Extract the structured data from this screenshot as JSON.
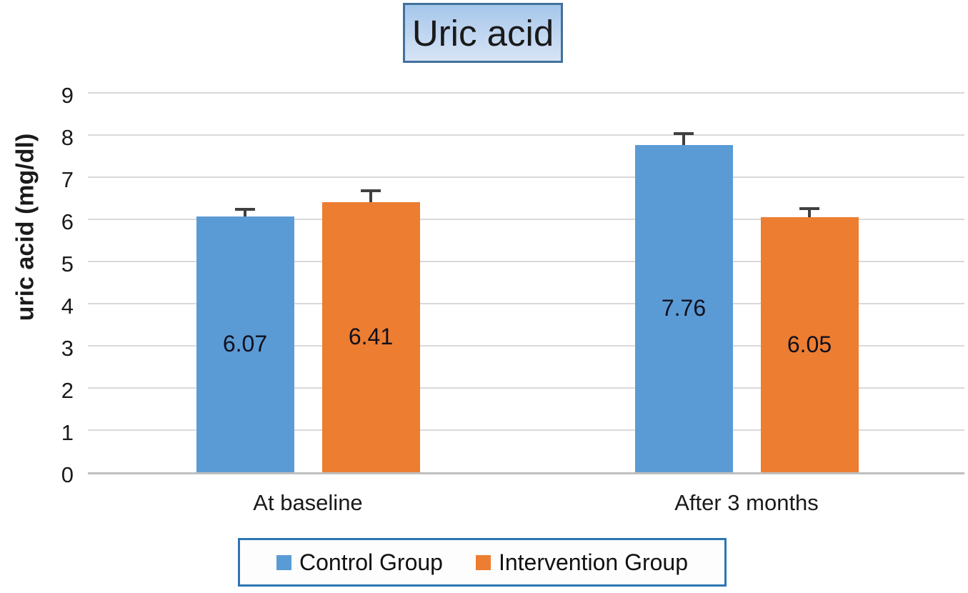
{
  "chart_data": {
    "type": "bar",
    "title": "Uric acid",
    "ylabel": "uric acid (mg/dl)",
    "xlabel": "",
    "categories": [
      "At baseline",
      "After 3 months"
    ],
    "series": [
      {
        "name": "Control Group",
        "color": "#5B9BD5",
        "values": [
          6.07,
          7.76
        ],
        "data_labels": [
          "6.07",
          "7.76"
        ],
        "errors_plus": [
          0.17,
          0.28
        ]
      },
      {
        "name": "Intervention Group",
        "color": "#ED7D31",
        "values": [
          6.41,
          6.05
        ],
        "data_labels": [
          "6.41",
          "6.05"
        ],
        "errors_plus": [
          0.26,
          0.21
        ]
      }
    ],
    "ylim": [
      0,
      9
    ],
    "yticks": [
      0,
      1,
      2,
      3,
      4,
      5,
      6,
      7,
      8,
      9
    ],
    "grid": true,
    "error_bars": true,
    "legend_position": "bottom",
    "data_label_position": "center"
  },
  "styles": {
    "grid_color": "#D9D9D9",
    "axis_color": "#BFBFBF",
    "error_bar_color": "#404040",
    "text_color": "#1A1A1A",
    "title_border_color": "#41719C",
    "title_gradient_top": "#A6C6EB",
    "title_gradient_bottom": "#D7E4F5",
    "legend_border_color": "#2E75B6"
  }
}
